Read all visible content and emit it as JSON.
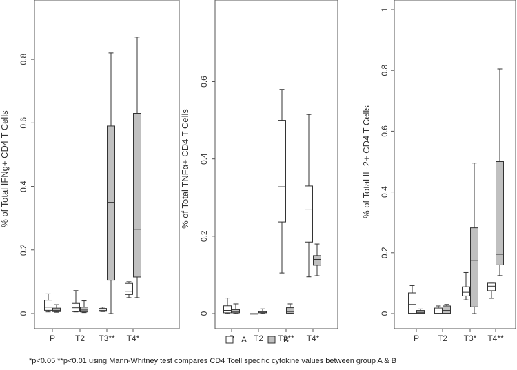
{
  "legend": {
    "items": [
      {
        "name": "A",
        "fill": "#ffffff"
      },
      {
        "name": "B",
        "fill": "#c0c0c0"
      }
    ]
  },
  "footnote": "*p<0.05 **p<0.01 using Mann-Whitney test compares CD4 Tcell specific cytokine values between group A & B",
  "colors": {
    "group_a": "#ffffff",
    "group_b": "#c0c0c0",
    "stroke": "#333333"
  },
  "chart_data": [
    {
      "type": "box",
      "title": "",
      "ylabel": "% of Total IFNg+ CD4 T Cells",
      "categories": [
        "P",
        "T2",
        "T3**",
        "T4*"
      ],
      "ylim": [
        0,
        0.9
      ],
      "yticks": [
        0,
        0.2,
        0.4,
        0.6,
        0.8
      ],
      "yticklabels": [
        "0",
        "0.2",
        "0.4",
        "0.6",
        "0.8"
      ],
      "series": [
        {
          "name": "A",
          "boxes": [
            {
              "min": 0.005,
              "q1": 0.01,
              "median": 0.02,
              "q3": 0.042,
              "max": 0.062
            },
            {
              "min": 0.005,
              "q1": 0.006,
              "median": 0.018,
              "q3": 0.032,
              "max": 0.072
            },
            {
              "min": 0.006,
              "q1": 0.007,
              "median": 0.01,
              "q3": 0.016,
              "max": 0.02
            },
            {
              "min": 0.05,
              "q1": 0.06,
              "median": 0.07,
              "q3": 0.095,
              "max": 0.1
            }
          ]
        },
        {
          "name": "B",
          "boxes": [
            {
              "min": 0.004,
              "q1": 0.006,
              "median": 0.01,
              "q3": 0.017,
              "max": 0.028
            },
            {
              "min": 0.003,
              "q1": 0.005,
              "median": 0.011,
              "q3": 0.02,
              "max": 0.04
            },
            {
              "min": 0.0,
              "q1": 0.105,
              "median": 0.35,
              "q3": 0.59,
              "max": 0.82
            },
            {
              "min": 0.05,
              "q1": 0.115,
              "median": 0.265,
              "q3": 0.63,
              "max": 0.87
            }
          ]
        }
      ]
    },
    {
      "type": "box",
      "title": "",
      "ylabel": "% of Total TNFα+ CD4 T Cells",
      "categories": [
        "P",
        "T2",
        "T3**",
        "T4*"
      ],
      "ylim": [
        0,
        0.74
      ],
      "yticks": [
        0,
        0.2,
        0.4,
        0.6
      ],
      "yticklabels": [
        "0",
        "0.2",
        "0.4",
        "0.6"
      ],
      "series": [
        {
          "name": "A",
          "boxes": [
            {
              "min": 0.0,
              "q1": 0.002,
              "median": 0.008,
              "q3": 0.02,
              "max": 0.04
            },
            {
              "min": 0.0,
              "q1": 0.0,
              "median": 0.0,
              "q3": 0.0,
              "max": 0.0
            },
            {
              "min": 0.105,
              "q1": 0.237,
              "median": 0.328,
              "q3": 0.5,
              "max": 0.58
            },
            {
              "min": 0.095,
              "q1": 0.185,
              "median": 0.27,
              "q3": 0.33,
              "max": 0.515
            }
          ]
        },
        {
          "name": "B",
          "boxes": [
            {
              "min": 0.0,
              "q1": 0.002,
              "median": 0.005,
              "q3": 0.01,
              "max": 0.025
            },
            {
              "min": 0.0,
              "q1": 0.002,
              "median": 0.004,
              "q3": 0.006,
              "max": 0.012
            },
            {
              "min": 0.0,
              "q1": 0.001,
              "median": 0.005,
              "q3": 0.015,
              "max": 0.025
            },
            {
              "min": 0.098,
              "q1": 0.125,
              "median": 0.14,
              "q3": 0.15,
              "max": 0.18
            }
          ]
        }
      ]
    },
    {
      "type": "box",
      "title": "",
      "ylabel": "% of Total IL-2+ CD4 T Cells",
      "categories": [
        "P",
        "T2",
        "T3*",
        "T4**"
      ],
      "ylim": [
        0,
        1.0
      ],
      "yticks": [
        0,
        0.2,
        0.4,
        0.6,
        0.8,
        1
      ],
      "yticklabels": [
        "0",
        "0.2",
        "0.4",
        "0.6",
        "0.8",
        "1"
      ],
      "series": [
        {
          "name": "A",
          "boxes": [
            {
              "min": 0.0,
              "q1": 0.001,
              "median": 0.03,
              "q3": 0.068,
              "max": 0.092
            },
            {
              "min": 0.0,
              "q1": 0.001,
              "median": 0.008,
              "q3": 0.018,
              "max": 0.025
            },
            {
              "min": 0.045,
              "q1": 0.058,
              "median": 0.07,
              "q3": 0.088,
              "max": 0.135
            },
            {
              "min": 0.05,
              "q1": 0.075,
              "median": 0.09,
              "q3": 0.1,
              "max": 0.1
            }
          ]
        },
        {
          "name": "B",
          "boxes": [
            {
              "min": 0.0,
              "q1": 0.001,
              "median": 0.004,
              "q3": 0.01,
              "max": 0.015
            },
            {
              "min": 0.0,
              "q1": 0.001,
              "median": 0.01,
              "q3": 0.025,
              "max": 0.03
            },
            {
              "min": 0.0,
              "q1": 0.022,
              "median": 0.175,
              "q3": 0.282,
              "max": 0.495
            },
            {
              "min": 0.125,
              "q1": 0.16,
              "median": 0.195,
              "q3": 0.5,
              "max": 0.805
            }
          ]
        }
      ]
    }
  ]
}
